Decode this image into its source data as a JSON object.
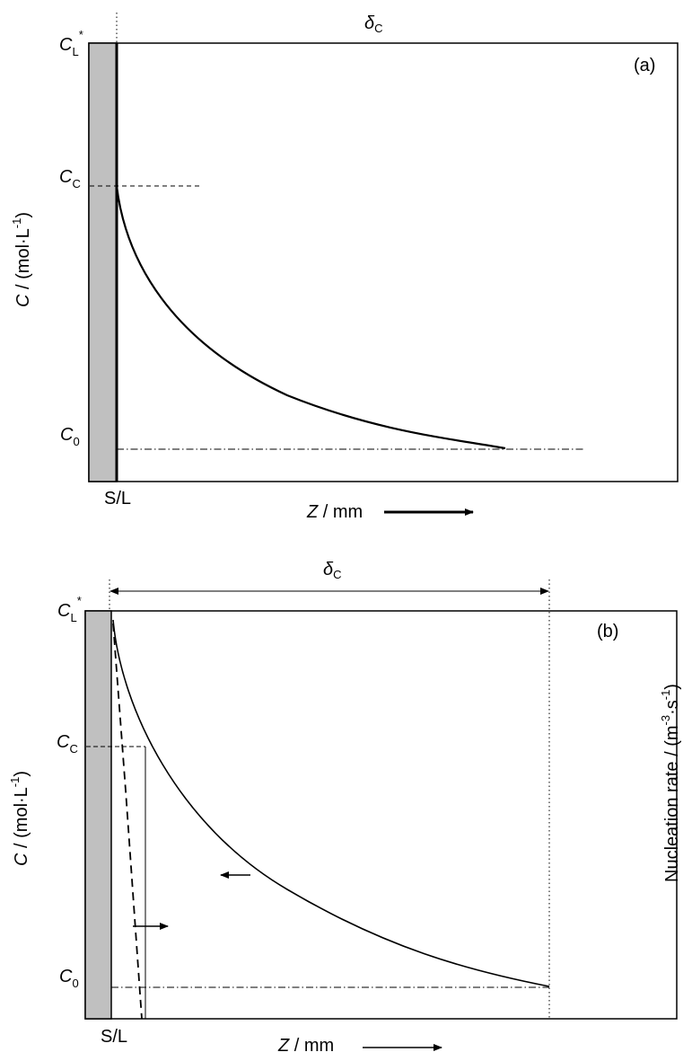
{
  "panel_a": {
    "tag": "(a)",
    "y_axis": {
      "var": "C",
      "unit_pre": " / (mol·L",
      "unit_exp": "-1",
      "unit_post": ")"
    },
    "x_axis": {
      "var": "Z",
      "unit": " / mm"
    },
    "levels": {
      "cl": {
        "main": "C",
        "sub": "L",
        "sup": "*"
      },
      "cc": {
        "main": "C",
        "sub": "C"
      },
      "c0": {
        "main": "C",
        "sub": "0"
      }
    },
    "delta": {
      "main": "δ",
      "sub": "C"
    },
    "interface": "S/L"
  },
  "panel_b": {
    "tag": "(b)",
    "y_axis": {
      "var": "C",
      "unit_pre": " / (mol·L",
      "unit_exp": "-1",
      "unit_post": ")"
    },
    "y2_axis": {
      "text": "Nucleation rate / (m",
      "exp1": "-3",
      "mid": "·s",
      "exp2": "-1",
      "post": ")"
    },
    "x_axis": {
      "var": "Z",
      "unit": " / mm"
    },
    "levels": {
      "cl": {
        "main": "C",
        "sub": "L",
        "sup": "*"
      },
      "cc": {
        "main": "C",
        "sub": "C"
      },
      "c0": {
        "main": "C",
        "sub": "0"
      }
    },
    "delta": {
      "main": "δ",
      "sub": "C"
    },
    "interface": "S/L"
  },
  "colors": {
    "solid": "#c0c0c0",
    "line": "#000000"
  }
}
